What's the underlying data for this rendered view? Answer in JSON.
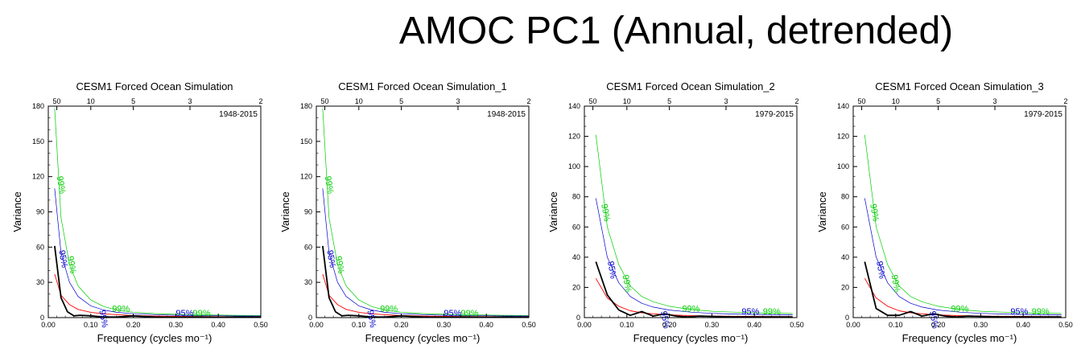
{
  "title": "AMOC PC1 (Annual, detrended)",
  "colors": {
    "spectrum": "#000000",
    "red_noise": "#ff0000",
    "ci95": "#0000cc",
    "ci99": "#00cc00"
  },
  "chart_data": [
    {
      "type": "line",
      "title": "CESM1 Forced Ocean Simulation",
      "year_range": "1948-2015",
      "xlabel": "Frequency (cycles mo⁻¹)",
      "ylabel": "Variance",
      "xlim": [
        0,
        0.5
      ],
      "ylim": [
        0,
        180
      ],
      "x_ticks": [
        0,
        0.1,
        0.2,
        0.3,
        0.4,
        0.5
      ],
      "x_tick_labels": [
        "0.00",
        "0.10",
        "0.20",
        "0.30",
        "0.40",
        "0.50"
      ],
      "y_ticks": [
        0,
        30,
        60,
        90,
        120,
        150,
        180
      ],
      "y_tick_labels": [
        "0",
        "30",
        "60",
        "90",
        "120",
        "150",
        "180"
      ],
      "top_axis_periods": [
        50,
        10,
        5,
        3,
        2
      ],
      "top_axis_labels": [
        "50",
        "10",
        "5",
        "3",
        "2"
      ],
      "ci_labels": {
        "ci95": "95%",
        "ci99": "99%"
      },
      "series": [
        {
          "name": "spectrum",
          "x": [
            0.015,
            0.03,
            0.045,
            0.06,
            0.075,
            0.1,
            0.13,
            0.16,
            0.2,
            0.25,
            0.3,
            0.35,
            0.4,
            0.45,
            0.5
          ],
          "y": [
            61,
            17,
            5,
            1.5,
            2,
            1.5,
            0.5,
            0.5,
            1.5,
            0.5,
            0.3,
            0.5,
            0.3,
            0.5,
            0.3
          ]
        },
        {
          "name": "red_noise",
          "x": [
            0.015,
            0.03,
            0.05,
            0.07,
            0.1,
            0.13,
            0.16,
            0.2,
            0.25,
            0.3,
            0.35,
            0.4,
            0.45,
            0.5
          ],
          "y": [
            37,
            19,
            11,
            7,
            4.5,
            3.2,
            2.5,
            1.8,
            1.3,
            1.0,
            0.9,
            0.8,
            0.7,
            0.65
          ]
        },
        {
          "name": "ci95",
          "x": [
            0.015,
            0.03,
            0.05,
            0.07,
            0.1,
            0.13,
            0.16,
            0.2,
            0.25,
            0.3,
            0.35,
            0.4,
            0.45,
            0.5
          ],
          "y": [
            110,
            55,
            30,
            18,
            10,
            6.5,
            4.5,
            3.3,
            2.5,
            2.0,
            1.8,
            1.6,
            1.4,
            1.3
          ]
        },
        {
          "name": "ci99",
          "x": [
            0.015,
            0.03,
            0.05,
            0.07,
            0.1,
            0.13,
            0.16,
            0.2,
            0.25,
            0.3,
            0.35,
            0.4,
            0.45,
            0.5
          ],
          "y": [
            178,
            85,
            45,
            27,
            15,
            9.5,
            6.5,
            4.6,
            3.4,
            2.8,
            2.4,
            2.1,
            1.9,
            1.8
          ]
        }
      ],
      "ci_label_positions": {
        "ci99": [
          [
            0.02,
            120
          ],
          [
            0.045,
            52
          ],
          [
            0.15,
            5
          ],
          [
            0.34,
            1.5
          ]
        ],
        "ci95": [
          [
            0.025,
            57
          ],
          [
            0.12,
            6
          ],
          [
            0.3,
            1.5
          ]
        ]
      }
    },
    {
      "type": "line",
      "title": "CESM1 Forced Ocean Simulation_1",
      "year_range": "1948-2015",
      "xlabel": "Frequency (cycles mo⁻¹)",
      "ylabel": "Variance",
      "xlim": [
        0,
        0.5
      ],
      "ylim": [
        0,
        180
      ],
      "x_ticks": [
        0,
        0.1,
        0.2,
        0.3,
        0.4,
        0.5
      ],
      "x_tick_labels": [
        "0.00",
        "0.10",
        "0.20",
        "0.30",
        "0.40",
        "0.50"
      ],
      "y_ticks": [
        0,
        30,
        60,
        90,
        120,
        150,
        180
      ],
      "y_tick_labels": [
        "0",
        "30",
        "60",
        "90",
        "120",
        "150",
        "180"
      ],
      "top_axis_periods": [
        50,
        10,
        5,
        3,
        2
      ],
      "top_axis_labels": [
        "50",
        "10",
        "5",
        "3",
        "2"
      ],
      "ci_labels": {
        "ci95": "95%",
        "ci99": "99%"
      },
      "series": [
        {
          "name": "spectrum",
          "x": [
            0.015,
            0.03,
            0.045,
            0.06,
            0.075,
            0.1,
            0.13,
            0.16,
            0.2,
            0.25,
            0.3,
            0.35,
            0.4,
            0.45,
            0.5
          ],
          "y": [
            61,
            17,
            5,
            1.5,
            2,
            1.5,
            0.5,
            0.5,
            1.5,
            0.5,
            0.3,
            0.5,
            0.3,
            0.5,
            0.3
          ]
        },
        {
          "name": "red_noise",
          "x": [
            0.015,
            0.03,
            0.05,
            0.07,
            0.1,
            0.13,
            0.16,
            0.2,
            0.25,
            0.3,
            0.35,
            0.4,
            0.45,
            0.5
          ],
          "y": [
            37,
            19,
            11,
            7,
            4.5,
            3.2,
            2.5,
            1.8,
            1.3,
            1.0,
            0.9,
            0.8,
            0.7,
            0.65
          ]
        },
        {
          "name": "ci95",
          "x": [
            0.015,
            0.03,
            0.05,
            0.07,
            0.1,
            0.13,
            0.16,
            0.2,
            0.25,
            0.3,
            0.35,
            0.4,
            0.45,
            0.5
          ],
          "y": [
            110,
            55,
            30,
            18,
            10,
            6.5,
            4.5,
            3.3,
            2.5,
            2.0,
            1.8,
            1.6,
            1.4,
            1.3
          ]
        },
        {
          "name": "ci99",
          "x": [
            0.015,
            0.03,
            0.05,
            0.07,
            0.1,
            0.13,
            0.16,
            0.2,
            0.25,
            0.3,
            0.35,
            0.4,
            0.45,
            0.5
          ],
          "y": [
            178,
            85,
            45,
            27,
            15,
            9.5,
            6.5,
            4.6,
            3.4,
            2.8,
            2.4,
            2.1,
            1.9,
            1.8
          ]
        }
      ],
      "ci_label_positions": {
        "ci99": [
          [
            0.02,
            120
          ],
          [
            0.045,
            52
          ],
          [
            0.15,
            5
          ],
          [
            0.34,
            1.5
          ]
        ],
        "ci95": [
          [
            0.025,
            57
          ],
          [
            0.12,
            6
          ],
          [
            0.3,
            1.5
          ]
        ]
      }
    },
    {
      "type": "line",
      "title": "CESM1 Forced Ocean Simulation_2",
      "year_range": "1979-2015",
      "xlabel": "Frequency (cycles mo⁻¹)",
      "ylabel": "Variance",
      "xlim": [
        0,
        0.5
      ],
      "ylim": [
        0,
        140
      ],
      "x_ticks": [
        0,
        0.1,
        0.2,
        0.3,
        0.4,
        0.5
      ],
      "x_tick_labels": [
        "0.00",
        "0.10",
        "0.20",
        "0.30",
        "0.40",
        "0.50"
      ],
      "y_ticks": [
        0,
        20,
        40,
        60,
        80,
        100,
        120,
        140
      ],
      "y_tick_labels": [
        "0",
        "20",
        "40",
        "60",
        "80",
        "100",
        "120",
        "140"
      ],
      "top_axis_periods": [
        50,
        10,
        5,
        3,
        2
      ],
      "top_axis_labels": [
        "50",
        "10",
        "5",
        "3",
        "2"
      ],
      "ci_labels": {
        "ci95": "95%",
        "ci99": "99%"
      },
      "series": [
        {
          "name": "spectrum",
          "x": [
            0.027,
            0.054,
            0.081,
            0.108,
            0.135,
            0.162,
            0.189,
            0.216,
            0.243,
            0.27,
            0.3,
            0.35,
            0.4,
            0.45,
            0.49
          ],
          "y": [
            37,
            15,
            5,
            1.5,
            4,
            1,
            2.5,
            1,
            0.5,
            1,
            0.8,
            0.5,
            0.5,
            0.4,
            0.5
          ]
        },
        {
          "name": "red_noise",
          "x": [
            0.027,
            0.054,
            0.081,
            0.108,
            0.135,
            0.162,
            0.2,
            0.25,
            0.3,
            0.35,
            0.4,
            0.45,
            0.49
          ],
          "y": [
            26,
            13,
            7.5,
            4.5,
            3.2,
            2.5,
            1.8,
            1.3,
            1.0,
            0.9,
            0.8,
            0.7,
            0.65
          ]
        },
        {
          "name": "ci95",
          "x": [
            0.027,
            0.054,
            0.081,
            0.108,
            0.135,
            0.162,
            0.2,
            0.25,
            0.3,
            0.35,
            0.4,
            0.45,
            0.49
          ],
          "y": [
            79,
            40,
            23,
            14,
            9.5,
            7,
            5,
            3.6,
            2.8,
            2.4,
            2.1,
            1.9,
            1.8
          ]
        },
        {
          "name": "ci99",
          "x": [
            0.027,
            0.054,
            0.081,
            0.108,
            0.135,
            0.162,
            0.2,
            0.25,
            0.3,
            0.35,
            0.4,
            0.45,
            0.49
          ],
          "y": [
            121,
            60,
            35,
            21,
            14,
            10.5,
            7.5,
            5.4,
            4.2,
            3.6,
            3.2,
            2.9,
            2.7
          ]
        }
      ],
      "ci_label_positions": {
        "ci99": [
          [
            0.04,
            75
          ],
          [
            0.09,
            28
          ],
          [
            0.23,
            4
          ],
          [
            0.42,
            2
          ]
        ],
        "ci95": [
          [
            0.055,
            37
          ],
          [
            0.18,
            4
          ],
          [
            0.37,
            2
          ]
        ]
      }
    },
    {
      "type": "line",
      "title": "CESM1 Forced Ocean Simulation_3",
      "year_range": "1979-2015",
      "xlabel": "Frequency (cycles mo⁻¹)",
      "ylabel": "Variance",
      "xlim": [
        0,
        0.5
      ],
      "ylim": [
        0,
        140
      ],
      "x_ticks": [
        0,
        0.1,
        0.2,
        0.3,
        0.4,
        0.5
      ],
      "x_tick_labels": [
        "0.00",
        "0.10",
        "0.20",
        "0.30",
        "0.40",
        "0.50"
      ],
      "y_ticks": [
        0,
        20,
        40,
        60,
        80,
        100,
        120,
        140
      ],
      "y_tick_labels": [
        "0",
        "20",
        "40",
        "60",
        "80",
        "100",
        "120",
        "140"
      ],
      "top_axis_periods": [
        50,
        10,
        5,
        3,
        2
      ],
      "top_axis_labels": [
        "50",
        "10",
        "5",
        "3",
        "2"
      ],
      "ci_labels": {
        "ci95": "95%",
        "ci99": "99%"
      },
      "series": [
        {
          "name": "spectrum",
          "x": [
            0.027,
            0.054,
            0.081,
            0.108,
            0.135,
            0.162,
            0.189,
            0.216,
            0.243,
            0.27,
            0.3,
            0.35,
            0.4,
            0.45,
            0.49
          ],
          "y": [
            37,
            6,
            1.5,
            1.5,
            4,
            1,
            2.5,
            1,
            0.5,
            1,
            0.8,
            0.5,
            0.5,
            0.4,
            0.5
          ]
        },
        {
          "name": "red_noise",
          "x": [
            0.027,
            0.054,
            0.081,
            0.108,
            0.135,
            0.162,
            0.2,
            0.25,
            0.3,
            0.35,
            0.4,
            0.45,
            0.49
          ],
          "y": [
            26,
            13,
            7.5,
            4.5,
            3.2,
            2.5,
            1.8,
            1.3,
            1.0,
            0.9,
            0.8,
            0.7,
            0.65
          ]
        },
        {
          "name": "ci95",
          "x": [
            0.027,
            0.054,
            0.081,
            0.108,
            0.135,
            0.162,
            0.2,
            0.25,
            0.3,
            0.35,
            0.4,
            0.45,
            0.49
          ],
          "y": [
            79,
            40,
            23,
            14,
            9.5,
            7,
            5,
            3.6,
            2.8,
            2.4,
            2.1,
            1.9,
            1.8
          ]
        },
        {
          "name": "ci99",
          "x": [
            0.027,
            0.054,
            0.081,
            0.108,
            0.135,
            0.162,
            0.2,
            0.25,
            0.3,
            0.35,
            0.4,
            0.45,
            0.49
          ],
          "y": [
            121,
            60,
            35,
            21,
            14,
            10.5,
            7.5,
            5.4,
            4.2,
            3.6,
            3.2,
            2.9,
            2.7
          ]
        }
      ],
      "ci_label_positions": {
        "ci99": [
          [
            0.04,
            75
          ],
          [
            0.09,
            28
          ],
          [
            0.23,
            4
          ],
          [
            0.42,
            2
          ]
        ],
        "ci95": [
          [
            0.055,
            37
          ],
          [
            0.18,
            4
          ],
          [
            0.37,
            2
          ]
        ]
      }
    }
  ]
}
